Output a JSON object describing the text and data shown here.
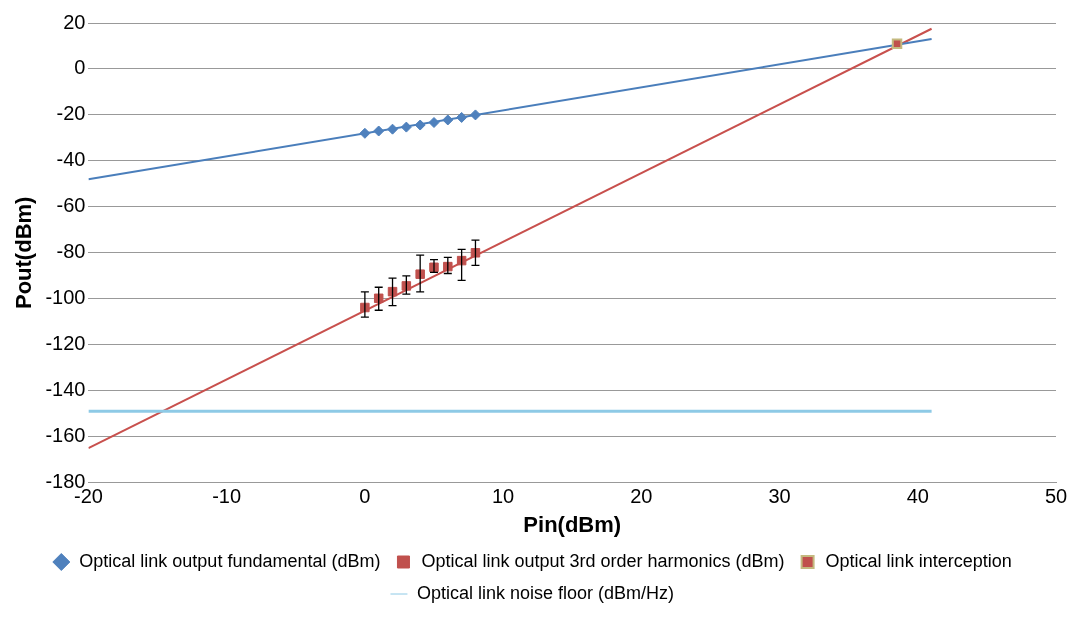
{
  "chart_data": {
    "type": "scatter",
    "xlabel": "Pin(dBm)",
    "ylabel": "Pout(dBm)",
    "xlim": [
      -20,
      50
    ],
    "xticks": [
      -20,
      -10,
      0,
      10,
      20,
      30,
      40,
      50
    ],
    "ylim": [
      -180,
      20
    ],
    "yticks": [
      -180,
      -160,
      -140,
      -120,
      -100,
      -80,
      -60,
      -40,
      -20,
      0,
      20
    ],
    "grid": "y",
    "legend": "bottom",
    "series": [
      {
        "name": "Optical link output fundamental (dBm)",
        "marker": "diamond",
        "color": "#4f81bd",
        "x": [
          0,
          1,
          2,
          3,
          4,
          5,
          6,
          7,
          8
        ],
        "values": [
          -28,
          -27,
          -26.2,
          -25.3,
          -24.4,
          -23.3,
          -22.2,
          -21.1,
          -20
        ]
      },
      {
        "name": "Optical link output 3rd order harmonics (dBm)",
        "marker": "square",
        "color": "#c0504d",
        "x": [
          0,
          1,
          2,
          3,
          4,
          5,
          6,
          7,
          8
        ],
        "values": [
          -103.8,
          -99.8,
          -96.9,
          -94.4,
          -89.3,
          -86.3,
          -86,
          -83.4,
          -80
        ],
        "errors": [
          [
            -108,
            -97
          ],
          [
            -105,
            -95
          ],
          [
            -103,
            -91
          ],
          [
            -98,
            -90
          ],
          [
            -97,
            -81
          ],
          [
            -88.5,
            -83
          ],
          [
            -89,
            -82
          ],
          [
            -92,
            -78.5
          ],
          [
            -85.5,
            -74.5
          ]
        ]
      },
      {
        "name": "Optical link interception",
        "marker": "square",
        "color": "#c0504d",
        "x": [
          38.5
        ],
        "values": [
          11
        ]
      },
      {
        "name": "Optical link noise floor (dBm/Hz)",
        "type": "line",
        "marker": "none",
        "color": "#8ecae6",
        "x": [
          -20,
          41
        ],
        "values": [
          -149,
          -149
        ]
      },
      {
        "type": "line",
        "marker": "none",
        "color": "#4a7ebb",
        "x": [
          -20,
          41
        ],
        "values": [
          -48,
          13
        ]
      },
      {
        "type": "line",
        "marker": "none",
        "color": "#c8504d",
        "x": [
          -20,
          41
        ],
        "values": [
          -165,
          17.5
        ]
      }
    ]
  }
}
